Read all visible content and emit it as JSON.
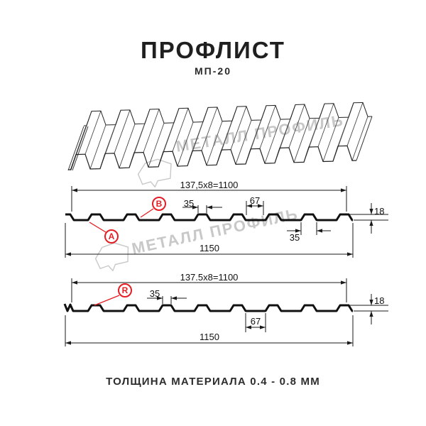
{
  "header": {
    "title": "ПРОФЛИСТ",
    "subtitle": "МП-20"
  },
  "watermark": {
    "text": "МЕТАЛЛ ПРОФИЛЬ"
  },
  "drawing1": {
    "formula": "137,5x8=1100",
    "rib_top_width": "35",
    "valley_width": "67",
    "height": "18",
    "rib_bottom_width": "35",
    "total_width": "1150",
    "side_a": "A",
    "side_b": "B"
  },
  "drawing2": {
    "formula": "137.5x8=1100",
    "rib_top_width": "35",
    "valley_width": "67",
    "height": "18",
    "total_width": "1150",
    "side_r": "R"
  },
  "footer": {
    "thickness_note": "ТОЛЩИНА МАТЕРИАЛА 0.4 - 0.8 ММ"
  },
  "colors": {
    "accent_red": "#e31e24",
    "line_dark": "#1a1a1a",
    "watermark_gray": "#c8c8c8"
  }
}
